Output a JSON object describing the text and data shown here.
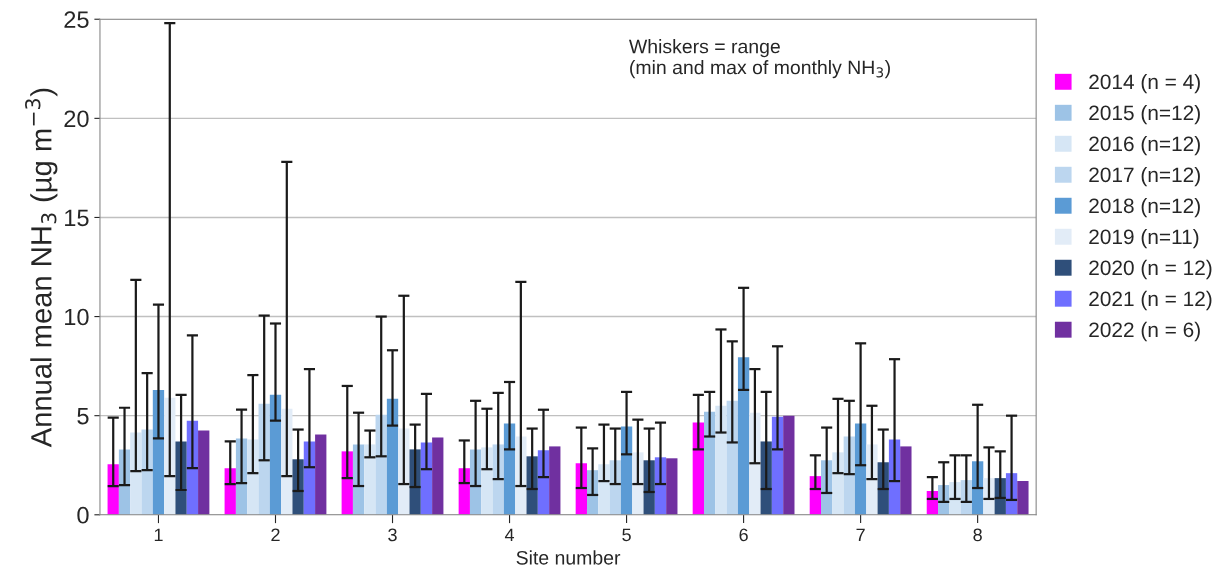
{
  "chart_data": {
    "type": "bar",
    "xlabel": "Site number",
    "ylabel": "Annual mean NH$_{3}$ (µg m$^{−3}$)",
    "annotations": [
      "Whiskers = range\n(min and max of monthly NH$_{3}$)"
    ],
    "categories": [
      "1",
      "2",
      "3",
      "4",
      "5",
      "6",
      "7",
      "8"
    ],
    "ylim": [
      0,
      25
    ],
    "yticks": [
      0,
      5,
      10,
      15,
      20,
      25
    ],
    "grid": "y",
    "legend": "right",
    "series": [
      {
        "name": "2014 (n = 4)",
        "color": "#ff00ff",
        "values": [
          2.55,
          2.35,
          3.2,
          2.35,
          2.6,
          4.65,
          1.95,
          1.2
        ],
        "errors": [
          [
            1.45,
            4.9
          ],
          [
            1.55,
            3.7
          ],
          [
            1.85,
            6.5
          ],
          [
            1.6,
            3.75
          ],
          [
            1.35,
            4.4
          ],
          [
            3.3,
            6.05
          ],
          [
            1.3,
            3.0
          ],
          [
            0.8,
            1.9
          ]
        ]
      },
      {
        "name": "2015 (n=12)",
        "color": "#9dc3e6",
        "values": [
          3.3,
          3.85,
          3.55,
          3.3,
          2.25,
          5.2,
          2.75,
          1.5
        ],
        "errors": [
          [
            1.5,
            5.4
          ],
          [
            1.6,
            5.3
          ],
          [
            1.45,
            5.15
          ],
          [
            1.45,
            5.75
          ],
          [
            1.0,
            3.35
          ],
          [
            3.95,
            6.2
          ],
          [
            1.1,
            4.4
          ],
          [
            0.65,
            2.65
          ]
        ]
      },
      {
        "name": "2016 (n=12)",
        "color": "#d6e6f5",
        "values": [
          4.15,
          3.8,
          3.55,
          3.4,
          2.55,
          5.5,
          3.15,
          1.65
        ],
        "errors": [
          [
            2.2,
            11.85
          ],
          [
            2.1,
            7.05
          ],
          [
            2.9,
            4.25
          ],
          [
            2.3,
            5.35
          ],
          [
            1.7,
            4.55
          ],
          [
            4.15,
            9.35
          ],
          [
            2.1,
            5.85
          ],
          [
            0.8,
            3.0
          ]
        ]
      },
      {
        "name": "2017 (n=12)",
        "color": "#bcd6ef",
        "values": [
          4.3,
          5.6,
          5.05,
          3.55,
          2.75,
          5.75,
          3.95,
          1.75
        ],
        "errors": [
          [
            2.25,
            7.15
          ],
          [
            2.75,
            10.05
          ],
          [
            2.95,
            10.0
          ],
          [
            1.8,
            6.15
          ],
          [
            1.55,
            4.35
          ],
          [
            3.65,
            8.75
          ],
          [
            2.05,
            5.75
          ],
          [
            0.65,
            3.0
          ]
        ]
      },
      {
        "name": "2018 (n=12)",
        "color": "#5b9bd5",
        "values": [
          6.3,
          6.05,
          5.85,
          4.6,
          4.45,
          7.95,
          4.6,
          2.7
        ],
        "errors": [
          [
            3.85,
            10.6
          ],
          [
            4.75,
            9.65
          ],
          [
            4.5,
            8.3
          ],
          [
            3.3,
            6.7
          ],
          [
            3.05,
            6.2
          ],
          [
            6.3,
            11.45
          ],
          [
            2.5,
            8.65
          ],
          [
            1.35,
            5.55
          ]
        ]
      },
      {
        "name": "2019 (n=11)",
        "color": "#e2ecf7",
        "values": [
          5.9,
          5.35,
          4.35,
          3.95,
          3.15,
          5.15,
          3.55,
          1.85
        ],
        "errors": [
          [
            1.95,
            24.8
          ],
          [
            1.95,
            17.8
          ],
          [
            1.55,
            11.05
          ],
          [
            1.45,
            11.75
          ],
          [
            1.55,
            4.8
          ],
          [
            2.6,
            7.35
          ],
          [
            1.8,
            5.5
          ],
          [
            0.8,
            3.4
          ]
        ]
      },
      {
        "name": "2020 (n = 12)",
        "color": "#2f4f7a",
        "values": [
          3.7,
          2.8,
          3.3,
          2.95,
          2.75,
          3.7,
          2.65,
          1.85
        ],
        "errors": [
          [
            1.25,
            6.05
          ],
          [
            1.2,
            4.3
          ],
          [
            1.4,
            4.55
          ],
          [
            1.3,
            4.35
          ],
          [
            1.15,
            4.35
          ],
          [
            1.3,
            6.2
          ],
          [
            1.3,
            4.3
          ],
          [
            0.85,
            3.2
          ]
        ]
      },
      {
        "name": "2021 (n = 12)",
        "color": "#6f6fff",
        "values": [
          4.75,
          3.7,
          3.65,
          3.25,
          2.9,
          4.95,
          3.8,
          2.1
        ],
        "errors": [
          [
            2.35,
            9.05
          ],
          [
            2.4,
            7.35
          ],
          [
            2.3,
            6.1
          ],
          [
            1.9,
            5.3
          ],
          [
            1.55,
            4.65
          ],
          [
            3.3,
            8.5
          ],
          [
            1.7,
            7.85
          ],
          [
            0.75,
            5.0
          ]
        ]
      },
      {
        "name": "2022 (n = 6)",
        "color": "#7030a0",
        "values": [
          4.25,
          4.05,
          3.9,
          3.45,
          2.85,
          5.0,
          3.45,
          1.7
        ]
      }
    ]
  }
}
